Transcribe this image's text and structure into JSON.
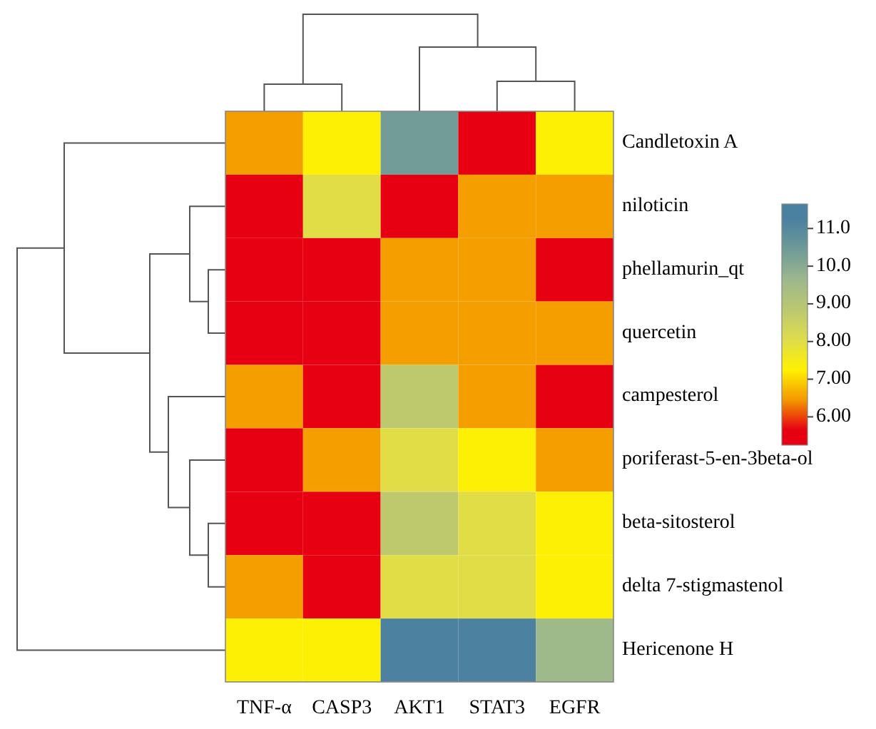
{
  "chart_data": {
    "type": "heatmap",
    "categories": [
      "TNF-α",
      "CASP3",
      "AKT1",
      "STAT3",
      "EGFR"
    ],
    "y_categories": [
      "Candletoxin A",
      "niloticin",
      "phellamurin_qt",
      "quercetin",
      "campesterol",
      "poriferast-5-en-3beta-ol",
      "beta-sitosterol",
      "delta 7-stigmastenol",
      "Hericenone H"
    ],
    "cells": [
      [
        6.5,
        7.3,
        10.4,
        5.6,
        7.3
      ],
      [
        5.6,
        8.0,
        5.6,
        6.5,
        6.5
      ],
      [
        5.6,
        5.6,
        6.5,
        6.5,
        5.6
      ],
      [
        5.6,
        5.6,
        6.5,
        6.5,
        6.5
      ],
      [
        6.5,
        5.6,
        8.8,
        6.5,
        5.6
      ],
      [
        5.6,
        6.5,
        8.0,
        7.3,
        6.5
      ],
      [
        5.6,
        5.6,
        8.8,
        8.0,
        7.3
      ],
      [
        6.5,
        5.6,
        8.0,
        8.0,
        7.3
      ],
      [
        7.3,
        7.3,
        11.2,
        11.2,
        9.6
      ]
    ],
    "clim": [
      5.25,
      11.65
    ],
    "cticks": [
      {
        "value": 6,
        "label": "6.00"
      },
      {
        "value": 7,
        "label": "7.00"
      },
      {
        "value": 8,
        "label": "8.00"
      },
      {
        "value": 9,
        "label": "9.00"
      },
      {
        "value": 10,
        "label": "10.0"
      },
      {
        "value": 11,
        "label": "11.0"
      }
    ]
  }
}
